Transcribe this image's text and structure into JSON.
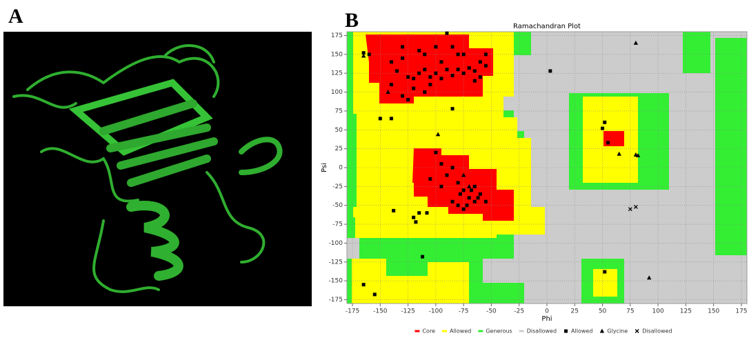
{
  "panels": {
    "a_label": "A",
    "b_label": "B"
  },
  "chart_data": {
    "type": "scatter",
    "title": "Ramachandran Plot",
    "x_label": "Phi",
    "y_label": "Psi",
    "xlim": [
      -180,
      180
    ],
    "ylim": [
      -180,
      180
    ],
    "xticks": [
      -175,
      -150,
      -125,
      -100,
      -75,
      -50,
      -25,
      0,
      25,
      50,
      75,
      100,
      125,
      150,
      175
    ],
    "yticks": [
      -175,
      -150,
      -125,
      -100,
      -75,
      -50,
      -25,
      0,
      25,
      50,
      75,
      100,
      125,
      150,
      175
    ],
    "grid": true,
    "regions": [
      {
        "name": "Core",
        "color": "#ff0000"
      },
      {
        "name": "Allowed",
        "color": "#ffff00"
      },
      {
        "name": "Generous",
        "color": "#33ee33"
      },
      {
        "name": "Disallowed",
        "color": "#cccccc"
      }
    ],
    "series": [
      {
        "name": "Allowed",
        "marker": "square",
        "color": "#000000",
        "x": [
          -165,
          -160,
          -140,
          -135,
          -130,
          -125,
          -120,
          -115,
          -110,
          -105,
          -100,
          -95,
          -90,
          -85,
          -80,
          -75,
          -70,
          -65,
          -60,
          -55,
          -110,
          -100,
          -85,
          -75,
          -95,
          -120,
          -105,
          -130,
          -125,
          -90,
          -80,
          -65,
          -140,
          -110,
          -60,
          -55,
          -115,
          -130,
          -150,
          -140,
          -85,
          3,
          -95,
          -90,
          -85,
          -80,
          -75,
          -70,
          -65,
          -60,
          -68,
          -72,
          -78,
          -62,
          -65,
          -100,
          -95,
          -105,
          -85,
          -75,
          -55,
          -80,
          -138,
          -115,
          -108,
          -118,
          -120,
          -112,
          -155,
          -165,
          52,
          50,
          55,
          52
        ],
        "y": [
          152,
          150,
          140,
          128,
          160,
          120,
          118,
          125,
          130,
          120,
          125,
          118,
          130,
          122,
          130,
          125,
          132,
          128,
          140,
          135,
          150,
          160,
          160,
          150,
          140,
          105,
          110,
          95,
          90,
          178,
          150,
          115,
          110,
          100,
          120,
          150,
          155,
          145,
          65,
          65,
          78,
          128,
          -25,
          -10,
          0,
          -20,
          -30,
          -40,
          -45,
          -35,
          -30,
          -50,
          -35,
          -40,
          -25,
          20,
          5,
          -15,
          -45,
          -55,
          -45,
          -50,
          -57,
          -60,
          -60,
          -72,
          -66,
          -118,
          -168,
          -155,
          60,
          52,
          33,
          -138
        ]
      },
      {
        "name": "Glycine",
        "marker": "triangle",
        "color": "#000000",
        "x": [
          -165,
          -143,
          -98,
          -75,
          -70,
          65,
          80,
          82,
          80,
          92
        ],
        "y": [
          148,
          100,
          44,
          -10,
          -25,
          18,
          17,
          16,
          165,
          -146
        ]
      },
      {
        "name": "Disallowed",
        "marker": "cross",
        "color": "#000000",
        "x": [
          75,
          80
        ],
        "y": [
          -55,
          -52
        ]
      }
    ]
  }
}
